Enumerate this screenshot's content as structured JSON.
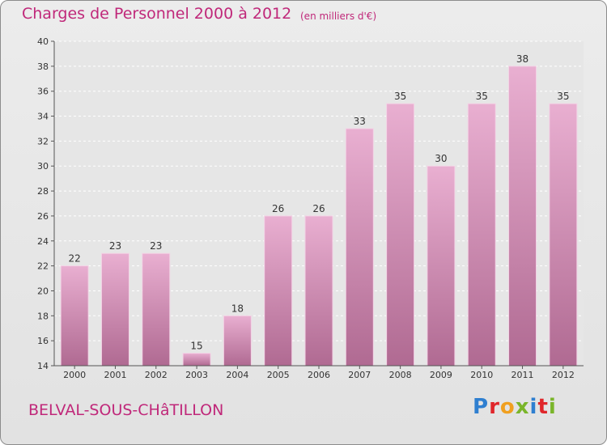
{
  "header": {
    "title": "Charges de Personnel 2000 à 2012",
    "subtitle": "(en milliers d'€)"
  },
  "footer": {
    "commune": "BELVAL-SOUS-CHâTILLON",
    "brand": "Proxiti"
  },
  "colors": {
    "bar_top": "#e9afd1",
    "bar_bottom": "#b06a92",
    "accent": "#c0287a",
    "brand_letters": [
      "#2f7fd0",
      "#e0262b",
      "#f0a020",
      "#7ab52a",
      "#2f7fd0",
      "#e0262b",
      "#7ab52a"
    ]
  },
  "chart_data": {
    "type": "bar",
    "title": "Charges de Personnel 2000 à 2012",
    "subtitle": "(en milliers d'€)",
    "categories": [
      "2000",
      "2001",
      "2002",
      "2003",
      "2004",
      "2005",
      "2006",
      "2007",
      "2008",
      "2009",
      "2010",
      "2011",
      "2012"
    ],
    "values": [
      22,
      23,
      23,
      15,
      18,
      26,
      26,
      33,
      35,
      30,
      35,
      38,
      35
    ],
    "ylim": [
      14,
      40
    ],
    "yticks": [
      14,
      16,
      18,
      20,
      22,
      24,
      26,
      28,
      30,
      32,
      34,
      36,
      38,
      40
    ],
    "grid": true
  }
}
